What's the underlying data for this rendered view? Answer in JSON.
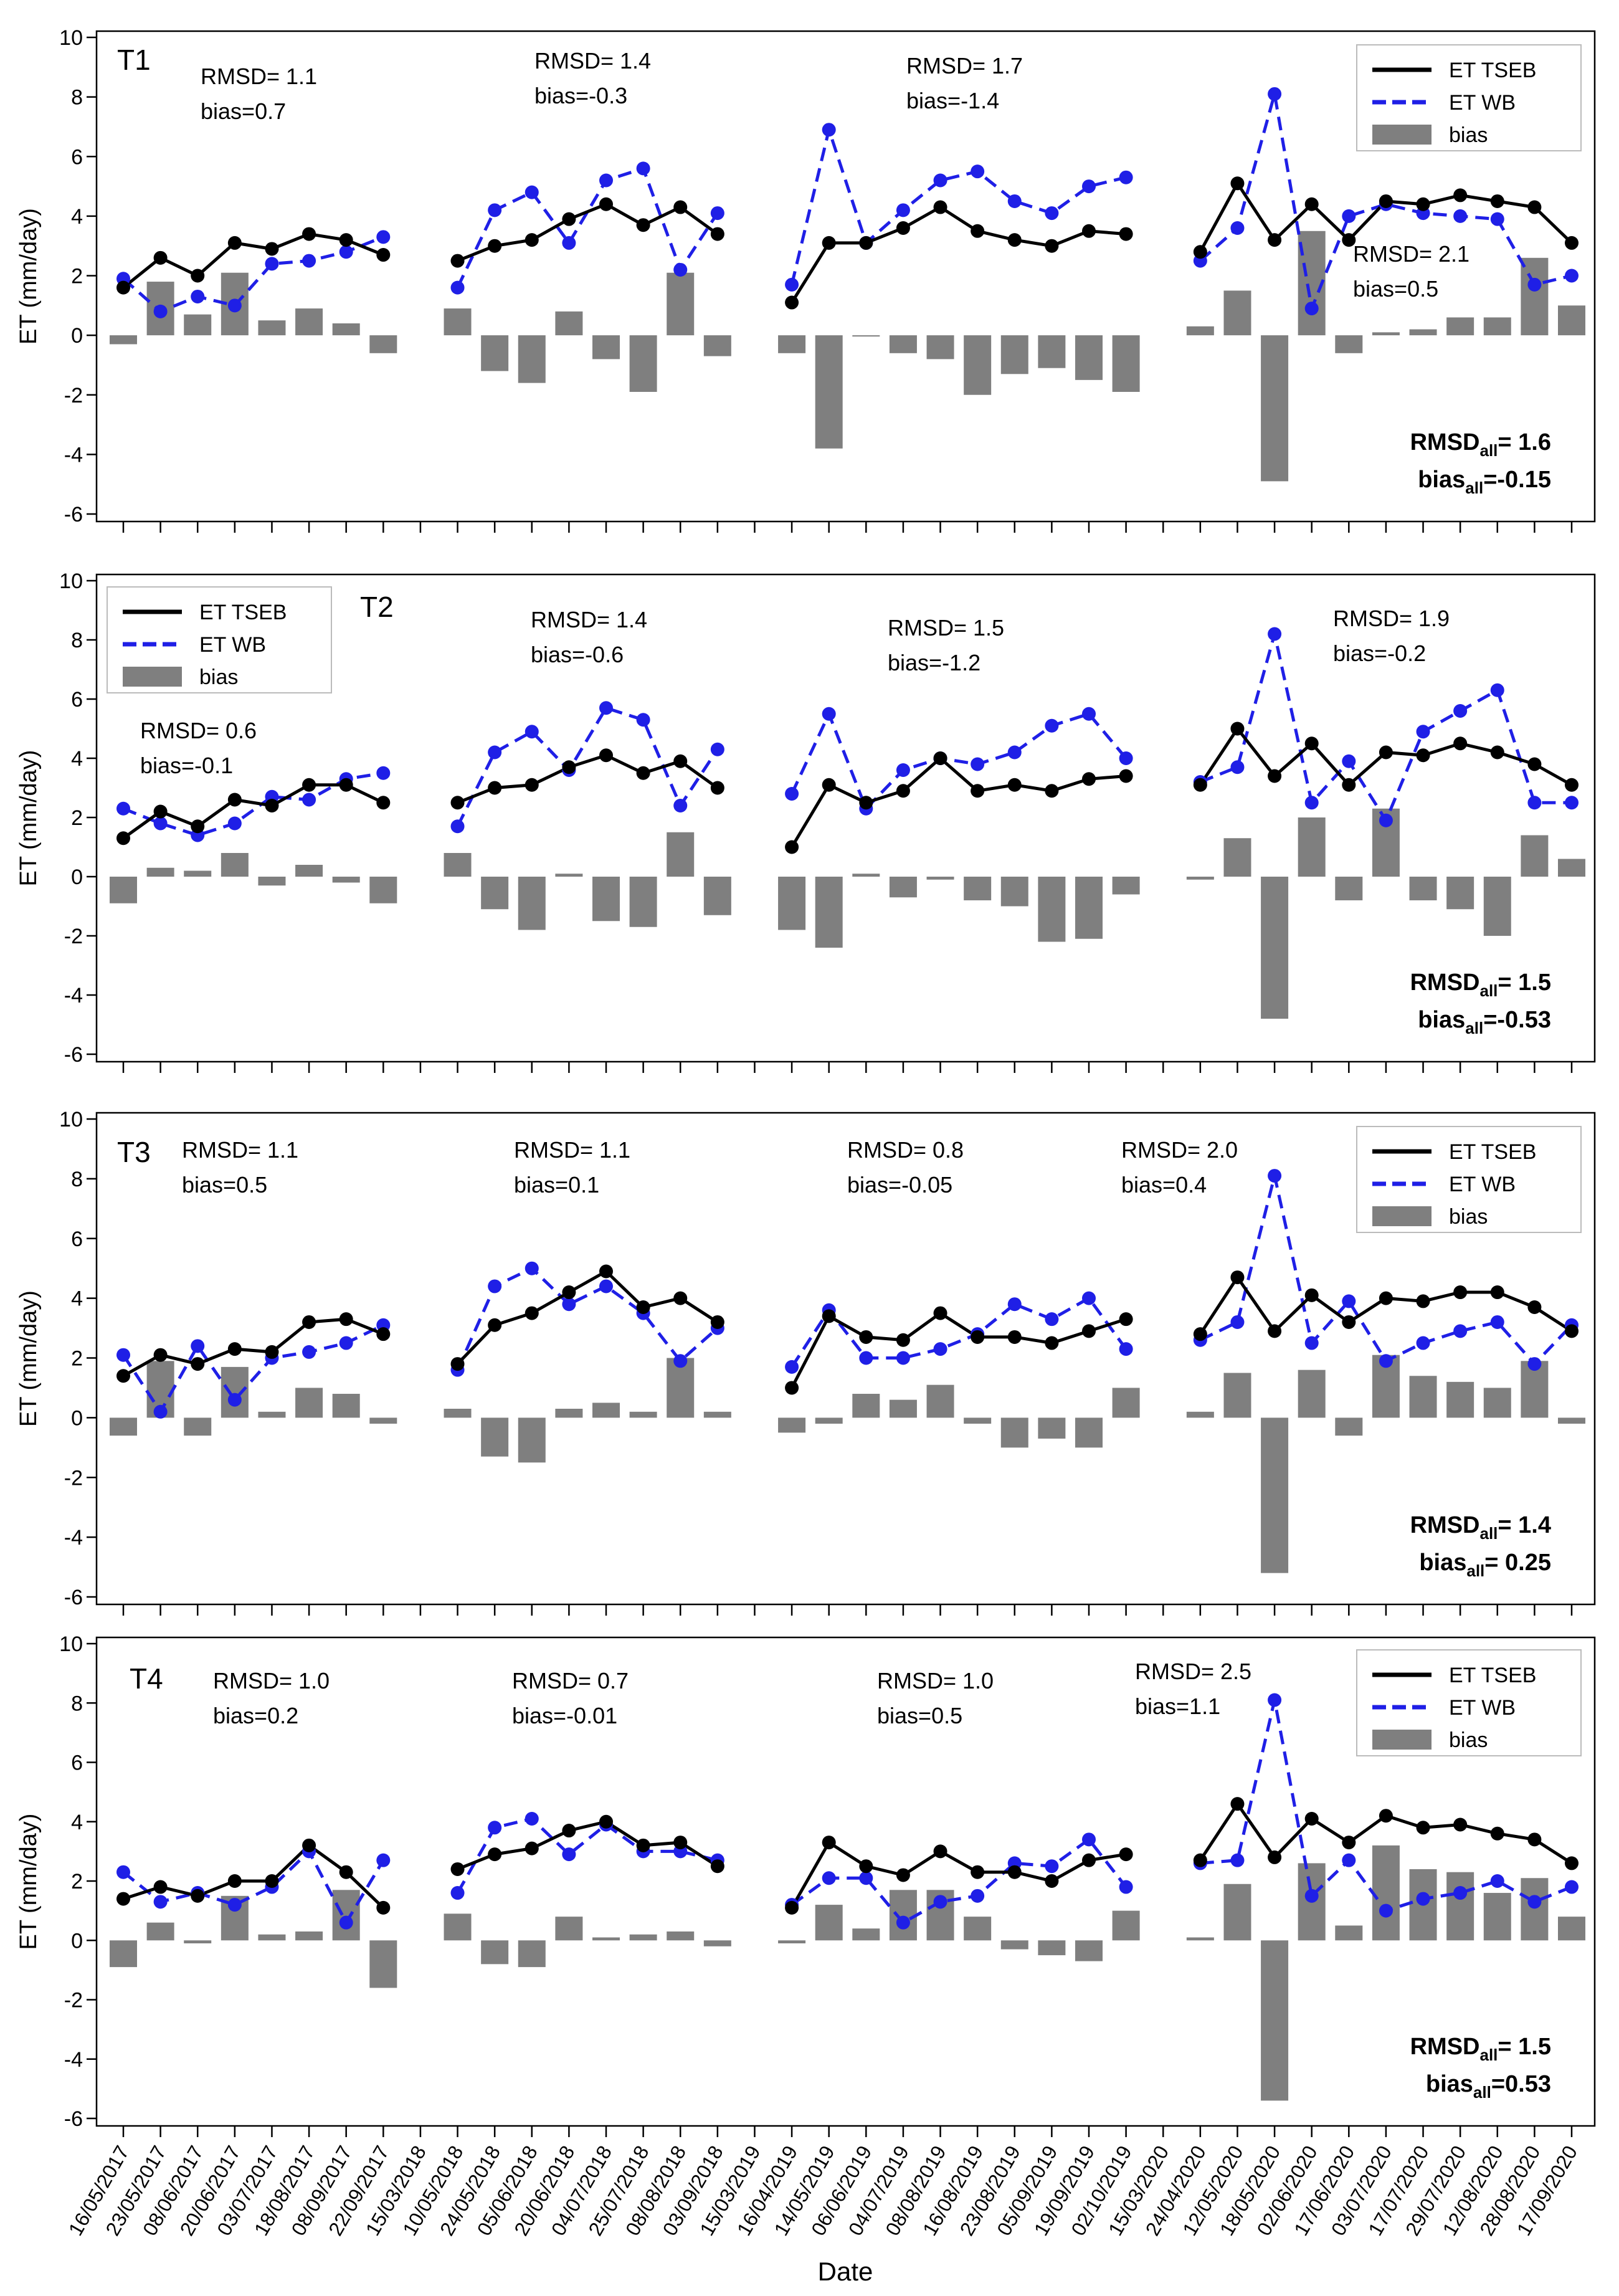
{
  "figure": {
    "ylabel": "ET (mm/day)",
    "xlabel": "Date",
    "legend_labels": [
      "ET TSEB",
      "ET WB",
      "bias"
    ],
    "colors": {
      "tseb": "#000000",
      "wb": "#1f1fe6",
      "bias": "#7f7f7f"
    },
    "ylim": [
      -6,
      10
    ],
    "yticks": [
      -6,
      -4,
      -2,
      0,
      2,
      4,
      6,
      8,
      10
    ],
    "dates": [
      "16/05/2017",
      "23/05/2017",
      "08/06/2017",
      "20/06/2017",
      "03/07/2017",
      "18/08/2017",
      "08/09/2017",
      "22/09/2017",
      "15/03/2018",
      "10/05/2018",
      "24/05/2018",
      "05/06/2018",
      "20/06/2018",
      "04/07/2018",
      "25/07/2018",
      "08/08/2018",
      "03/09/2018",
      "15/03/2019",
      "16/04/2019",
      "14/05/2019",
      "06/06/2019",
      "04/07/2019",
      "08/08/2019",
      "16/08/2019",
      "23/08/2019",
      "05/09/2019",
      "19/09/2019",
      "02/10/2019",
      "15/03/2020",
      "24/04/2020",
      "12/05/2020",
      "18/05/2020",
      "02/06/2020",
      "17/06/2020",
      "03/07/2020",
      "17/07/2020",
      "29/07/2020",
      "12/08/2020",
      "28/08/2020",
      "17/09/2020"
    ],
    "segments": [
      [
        0,
        7
      ],
      [
        9,
        16
      ],
      [
        18,
        27
      ],
      [
        29,
        39
      ]
    ]
  },
  "chart_data": [
    {
      "type": "line",
      "title": "T1",
      "legend_position": "top-right",
      "tseb": [
        1.6,
        2.6,
        2.0,
        3.1,
        2.9,
        3.4,
        3.2,
        2.7,
        null,
        2.5,
        3.0,
        3.2,
        3.9,
        4.4,
        3.7,
        4.3,
        3.4,
        null,
        1.1,
        3.1,
        3.1,
        3.6,
        4.3,
        3.5,
        3.2,
        3.0,
        3.5,
        3.4,
        null,
        2.8,
        5.1,
        3.2,
        4.4,
        3.2,
        4.5,
        4.4,
        4.7,
        4.5,
        4.3,
        3.1
      ],
      "wb": [
        1.9,
        0.8,
        1.3,
        1.0,
        2.4,
        2.5,
        2.8,
        3.3,
        null,
        1.6,
        4.2,
        4.8,
        3.1,
        5.2,
        5.6,
        2.2,
        4.1,
        null,
        1.7,
        6.9,
        3.1,
        4.2,
        5.2,
        5.5,
        4.5,
        4.1,
        5.0,
        5.3,
        null,
        2.5,
        3.6,
        8.1,
        0.9,
        4.0,
        4.4,
        4.1,
        4.0,
        3.9,
        1.7,
        2.0
      ],
      "bias": [
        -0.3,
        1.8,
        0.7,
        2.1,
        0.5,
        0.9,
        0.4,
        -0.6,
        null,
        0.9,
        -1.2,
        -1.6,
        0.8,
        -0.8,
        -1.9,
        2.1,
        -0.7,
        null,
        -0.6,
        -3.8,
        0.0,
        -0.6,
        -0.8,
        -2.0,
        -1.3,
        -1.1,
        -1.5,
        -1.9,
        null,
        0.3,
        1.5,
        -4.9,
        3.5,
        -0.6,
        0.1,
        0.2,
        0.6,
        0.6,
        2.6,
        1.0
      ],
      "stats": [
        {
          "rmsd": "RMSD= 1.1",
          "bias": "bias=0.7"
        },
        {
          "rmsd": "RMSD= 1.4",
          "bias": "bias=-0.3"
        },
        {
          "rmsd": "RMSD= 1.7",
          "bias": "bias=-1.4"
        },
        {
          "rmsd": "RMSD= 2.1",
          "bias": "bias=0.5"
        }
      ],
      "overall": {
        "rmsd_label": "RMSD",
        "rmsd_sub": "all",
        "rmsd_value": "= 1.6",
        "bias_label": "bias",
        "bias_sub": "all",
        "bias_value": "=-0.15"
      }
    },
    {
      "type": "line",
      "title": "T2",
      "legend_position": "top-left",
      "tseb": [
        1.3,
        2.2,
        1.7,
        2.6,
        2.4,
        3.1,
        3.1,
        2.5,
        null,
        2.5,
        3.0,
        3.1,
        3.7,
        4.1,
        3.5,
        3.9,
        3.0,
        null,
        1.0,
        3.1,
        2.5,
        2.9,
        4.0,
        2.9,
        3.1,
        2.9,
        3.3,
        3.4,
        null,
        3.1,
        5.0,
        3.4,
        4.5,
        3.1,
        4.2,
        4.1,
        4.5,
        4.2,
        3.8,
        3.1
      ],
      "wb": [
        2.3,
        1.8,
        1.4,
        1.8,
        2.7,
        2.6,
        3.3,
        3.5,
        null,
        1.7,
        4.2,
        4.9,
        3.6,
        5.7,
        5.3,
        2.4,
        4.3,
        null,
        2.8,
        5.5,
        2.3,
        3.6,
        4.0,
        3.8,
        4.2,
        5.1,
        5.5,
        4.0,
        null,
        3.2,
        3.7,
        8.2,
        2.5,
        3.9,
        1.9,
        4.9,
        5.6,
        6.3,
        2.5,
        2.5
      ],
      "bias": [
        -0.9,
        0.3,
        0.2,
        0.8,
        -0.3,
        0.4,
        -0.2,
        -0.9,
        null,
        0.8,
        -1.1,
        -1.8,
        0.1,
        -1.5,
        -1.7,
        1.5,
        -1.3,
        null,
        -1.8,
        -2.4,
        0.1,
        -0.7,
        -0.1,
        -0.8,
        -1.0,
        -2.2,
        -2.1,
        -0.6,
        null,
        -0.1,
        1.3,
        -4.8,
        2.0,
        -0.8,
        2.3,
        -0.8,
        -1.1,
        -2.0,
        1.4,
        0.6
      ],
      "stats": [
        {
          "rmsd": "RMSD= 0.6",
          "bias": "bias=-0.1"
        },
        {
          "rmsd": "RMSD= 1.4",
          "bias": "bias=-0.6"
        },
        {
          "rmsd": "RMSD= 1.5",
          "bias": "bias=-1.2"
        },
        {
          "rmsd": "RMSD= 1.9",
          "bias": "bias=-0.2"
        }
      ],
      "overall": {
        "rmsd_label": "RMSD",
        "rmsd_sub": "all",
        "rmsd_value": "= 1.5",
        "bias_label": "bias",
        "bias_sub": "all",
        "bias_value": "=-0.53"
      }
    },
    {
      "type": "line",
      "title": "T3",
      "legend_position": "top-right",
      "tseb": [
        1.4,
        2.1,
        1.8,
        2.3,
        2.2,
        3.2,
        3.3,
        2.8,
        null,
        1.8,
        3.1,
        3.5,
        4.2,
        4.9,
        3.7,
        4.0,
        3.2,
        null,
        1.0,
        3.4,
        2.7,
        2.6,
        3.5,
        2.7,
        2.7,
        2.5,
        2.9,
        3.3,
        null,
        2.8,
        4.7,
        2.9,
        4.1,
        3.2,
        4.0,
        3.9,
        4.2,
        4.2,
        3.7,
        2.9
      ],
      "wb": [
        2.1,
        0.2,
        2.4,
        0.6,
        2.0,
        2.2,
        2.5,
        3.1,
        null,
        1.6,
        4.4,
        5.0,
        3.8,
        4.4,
        3.5,
        1.9,
        3.0,
        null,
        1.7,
        3.6,
        2.0,
        2.0,
        2.3,
        2.8,
        3.8,
        3.3,
        4.0,
        2.3,
        null,
        2.6,
        3.2,
        8.1,
        2.5,
        3.9,
        1.9,
        2.5,
        2.9,
        3.2,
        1.8,
        3.1
      ],
      "bias": [
        -0.6,
        1.9,
        -0.6,
        1.7,
        0.2,
        1.0,
        0.8,
        -0.2,
        null,
        0.3,
        -1.3,
        -1.5,
        0.3,
        0.5,
        0.2,
        2.0,
        0.2,
        null,
        -0.5,
        -0.2,
        0.8,
        0.6,
        1.1,
        -0.2,
        -1.0,
        -0.7,
        -1.0,
        1.0,
        null,
        0.2,
        1.5,
        -5.2,
        1.6,
        -0.6,
        2.1,
        1.4,
        1.2,
        1.0,
        1.9,
        -0.2
      ],
      "stats": [
        {
          "rmsd": "RMSD= 1.1",
          "bias": "bias=0.5"
        },
        {
          "rmsd": "RMSD= 1.1",
          "bias": "bias=0.1"
        },
        {
          "rmsd": "RMSD= 0.8",
          "bias": "bias=-0.05"
        },
        {
          "rmsd": "RMSD= 2.0",
          "bias": "bias=0.4"
        }
      ],
      "overall": {
        "rmsd_label": "RMSD",
        "rmsd_sub": "all",
        "rmsd_value": "= 1.4",
        "bias_label": "bias",
        "bias_sub": "all",
        "bias_value": "= 0.25"
      }
    },
    {
      "type": "line",
      "title": "T4",
      "legend_position": "top-right",
      "tseb": [
        1.4,
        1.8,
        1.5,
        2.0,
        2.0,
        3.2,
        2.3,
        1.1,
        null,
        2.4,
        2.9,
        3.1,
        3.7,
        4.0,
        3.2,
        3.3,
        2.5,
        null,
        1.1,
        3.3,
        2.5,
        2.2,
        3.0,
        2.3,
        2.3,
        2.0,
        2.7,
        2.9,
        null,
        2.7,
        4.6,
        2.8,
        4.1,
        3.3,
        4.2,
        3.8,
        3.9,
        3.6,
        3.4,
        2.6
      ],
      "wb": [
        2.3,
        1.3,
        1.6,
        1.2,
        1.8,
        3.0,
        0.6,
        2.7,
        null,
        1.6,
        3.8,
        4.1,
        2.9,
        3.9,
        3.0,
        3.0,
        2.7,
        null,
        1.2,
        2.1,
        2.1,
        0.6,
        1.3,
        1.5,
        2.6,
        2.5,
        3.4,
        1.8,
        null,
        2.6,
        2.7,
        8.1,
        1.5,
        2.7,
        1.0,
        1.4,
        1.6,
        2.0,
        1.3,
        1.8
      ],
      "bias": [
        -0.9,
        0.6,
        -0.1,
        1.5,
        0.2,
        0.3,
        1.7,
        -1.6,
        null,
        0.9,
        -0.8,
        -0.9,
        0.8,
        0.1,
        0.2,
        0.3,
        -0.2,
        null,
        -0.1,
        1.2,
        0.4,
        1.7,
        1.7,
        0.8,
        -0.3,
        -0.5,
        -0.7,
        1.0,
        null,
        0.1,
        1.9,
        -5.4,
        2.6,
        0.5,
        3.2,
        2.4,
        2.3,
        1.6,
        2.1,
        0.8
      ],
      "stats": [
        {
          "rmsd": "RMSD= 1.0",
          "bias": "bias=0.2"
        },
        {
          "rmsd": "RMSD= 0.7",
          "bias": "bias=-0.01"
        },
        {
          "rmsd": "RMSD= 1.0",
          "bias": "bias=0.5"
        },
        {
          "rmsd": "RMSD= 2.5",
          "bias": "bias=1.1"
        }
      ],
      "overall": {
        "rmsd_label": "RMSD",
        "rmsd_sub": "all",
        "rmsd_value": "= 1.5",
        "bias_label": "bias",
        "bias_sub": "all",
        "bias_value": "=0.53"
      }
    }
  ]
}
